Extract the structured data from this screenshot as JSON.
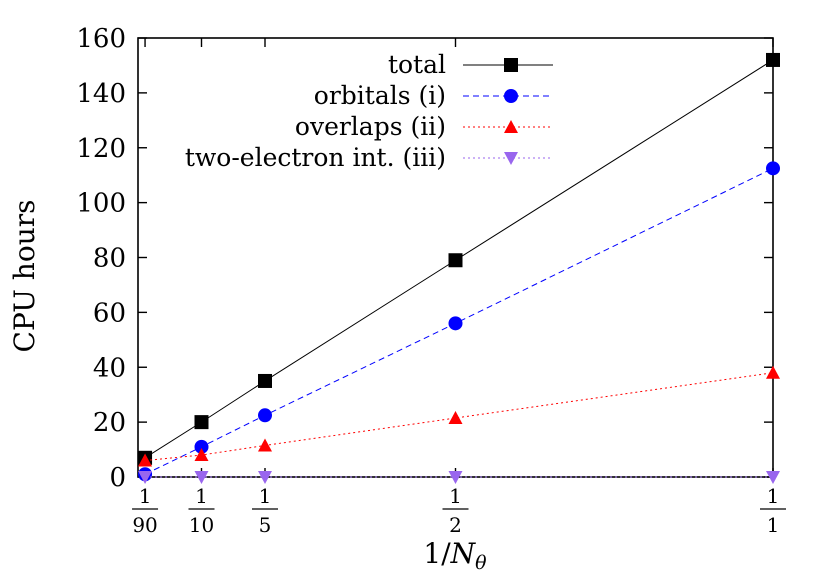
{
  "chart_data": {
    "type": "line",
    "xlabel": "1/Nθ",
    "ylabel": "CPU hours",
    "ylim": [
      0,
      160
    ],
    "yticks": [
      0,
      20,
      40,
      60,
      80,
      100,
      120,
      140,
      160
    ],
    "xlim": [
      0,
      1
    ],
    "x": [
      0.011111,
      0.1,
      0.2,
      0.5,
      1.0
    ],
    "x_tick_labels": [
      {
        "num": "1",
        "den": "90"
      },
      {
        "num": "1",
        "den": "10"
      },
      {
        "num": "1",
        "den": "5"
      },
      {
        "num": "1",
        "den": "2"
      },
      {
        "num": "1",
        "den": "1"
      }
    ],
    "legend_position": "top-right",
    "grid": false,
    "series": [
      {
        "name": "total",
        "values": [
          7,
          20,
          35,
          79,
          152
        ],
        "color": "#000000",
        "marker": "square",
        "dash": "solid"
      },
      {
        "name": "orbitals (i)",
        "values": [
          1,
          11,
          22.5,
          56,
          112.5
        ],
        "color": "#0000ff",
        "marker": "circle",
        "dash": "dashed"
      },
      {
        "name": "overlaps (ii)",
        "values": [
          6,
          8,
          11.5,
          21.5,
          38
        ],
        "color": "#ff0000",
        "marker": "triangle-up",
        "dash": "dotted"
      },
      {
        "name": "two-electron int. (iii)",
        "values": [
          0,
          0,
          0,
          0,
          0
        ],
        "color": "#9966ee",
        "marker": "triangle-down",
        "dash": "dotted"
      }
    ]
  }
}
